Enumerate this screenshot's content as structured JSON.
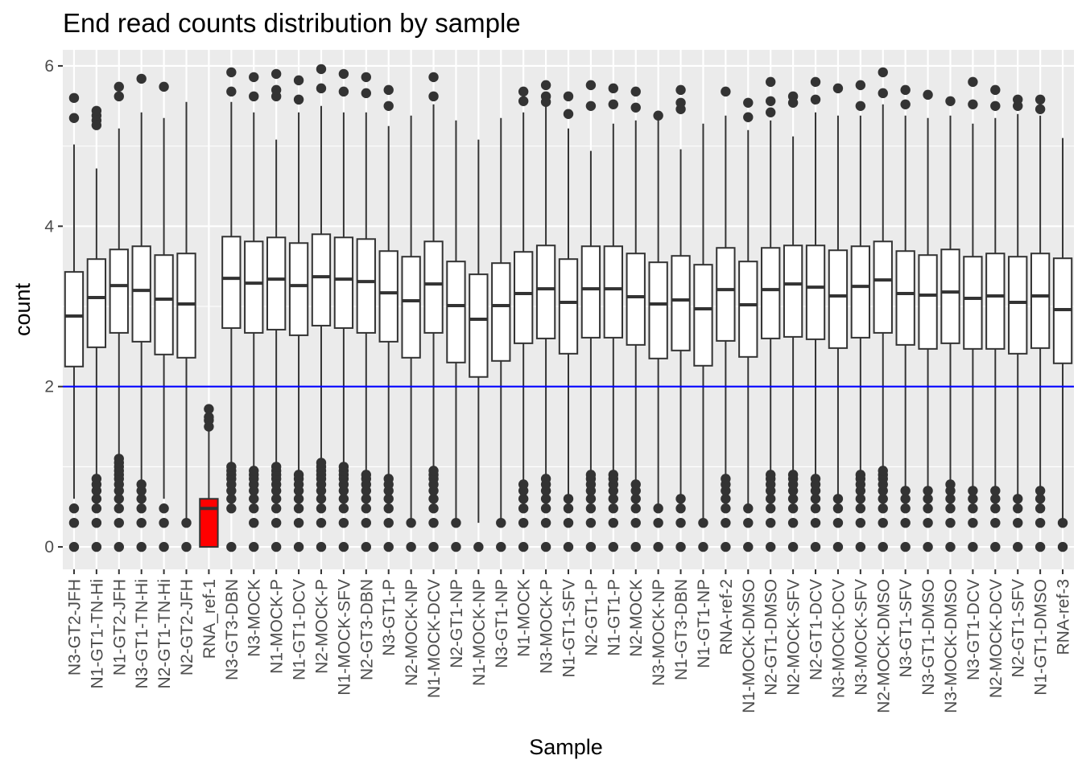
{
  "chart_data": {
    "type": "boxplot",
    "title": "End read counts distribution by sample",
    "xlabel": "Sample",
    "ylabel": "count",
    "ylim": [
      -0.28,
      6.2
    ],
    "y_ticks": [
      0,
      2,
      4,
      6
    ],
    "grid": true,
    "background": "#ebebeb",
    "reference_line": {
      "y": 2,
      "color": "#0000ff"
    },
    "highlight_color": "#ff0000",
    "categories": [
      "N3-GT2-JFH",
      "N1-GT1-TN-Hi",
      "N1-GT2-JFH",
      "N3-GT1-TN-Hi",
      "N2-GT1-TN-Hi",
      "N2-GT2-JFH",
      "RNA_ref-1",
      "N3-GT3-DBN",
      "N3-MOCK",
      "N1-MOCK-P",
      "N1-GT1-DCV",
      "N2-MOCK-P",
      "N1-MOCK-SFV",
      "N2-GT3-DBN",
      "N3-GT1-P",
      "N2-MOCK-NP",
      "N1-MOCK-DCV",
      "N2-GT1-NP",
      "N1-MOCK-NP",
      "N3-GT1-NP",
      "N1-MOCK",
      "N3-MOCK-P",
      "N1-GT1-SFV",
      "N2-GT1-P",
      "N1-GT1-P",
      "N2-MOCK",
      "N3-MOCK-NP",
      "N1-GT3-DBN",
      "N1-GT1-NP",
      "RNA-ref-2",
      "N1-MOCK-DMSO",
      "N2-GT1-DMSO",
      "N2-MOCK-SFV",
      "N2-GT1-DCV",
      "N3-MOCK-DCV",
      "N3-MOCK-SFV",
      "N2-MOCK-DMSO",
      "N3-GT1-SFV",
      "N3-GT1-DMSO",
      "N3-MOCK-DMSO",
      "N3-GT1-DCV",
      "N2-MOCK-DCV",
      "N2-GT1-SFV",
      "N1-GT1-DMSO",
      "RNA-ref-3"
    ],
    "boxes": [
      {
        "q1": 2.25,
        "median": 2.88,
        "q3": 3.43,
        "whisker_low": 0.6,
        "whisker_high": 5.02,
        "outliers_high": [
          5.35,
          5.6
        ],
        "outliers_low": [
          0,
          0.3,
          0.48
        ],
        "highlight": false
      },
      {
        "q1": 2.49,
        "median": 3.11,
        "q3": 3.59,
        "whisker_low": 0.88,
        "whisker_high": 4.72,
        "outliers_high": [
          5.26,
          5.32,
          5.38,
          5.44
        ],
        "outliers_low": [
          0,
          0.3,
          0.48,
          0.6,
          0.7,
          0.78,
          0.85
        ],
        "highlight": false
      },
      {
        "q1": 2.67,
        "median": 3.26,
        "q3": 3.71,
        "whisker_low": 1.13,
        "whisker_high": 5.22,
        "outliers_high": [
          5.62,
          5.74
        ],
        "outliers_low": [
          0,
          0.3,
          0.48,
          0.6,
          0.7,
          0.78,
          0.85,
          0.9,
          0.95,
          1.0,
          1.05,
          1.1
        ],
        "highlight": false
      },
      {
        "q1": 2.56,
        "median": 3.2,
        "q3": 3.75,
        "whisker_low": 0.82,
        "whisker_high": 5.42,
        "outliers_high": [
          5.84
        ],
        "outliers_low": [
          0,
          0.3,
          0.48,
          0.6,
          0.7,
          0.78
        ],
        "highlight": false
      },
      {
        "q1": 2.4,
        "median": 3.09,
        "q3": 3.64,
        "whisker_low": 0.6,
        "whisker_high": 5.35,
        "outliers_high": [
          5.74
        ],
        "outliers_low": [
          0,
          0.3,
          0.48
        ],
        "highlight": false
      },
      {
        "q1": 2.36,
        "median": 3.03,
        "q3": 3.66,
        "whisker_low": 0.35,
        "whisker_high": 5.55,
        "outliers_high": [],
        "outliers_low": [
          0,
          0.3
        ],
        "highlight": false
      },
      {
        "q1": 0,
        "median": 0.48,
        "q3": 0.6,
        "whisker_low": 0,
        "whisker_high": 1.45,
        "outliers_high": [
          1.5,
          1.58,
          1.62,
          1.72
        ],
        "outliers_low": [],
        "highlight": true
      },
      {
        "q1": 2.73,
        "median": 3.35,
        "q3": 3.87,
        "whisker_low": 1.05,
        "whisker_high": 5.55,
        "outliers_high": [
          5.68,
          5.92
        ],
        "outliers_low": [
          0,
          0.48,
          0.6,
          0.7,
          0.78,
          0.85,
          0.9,
          0.95,
          1.0
        ],
        "highlight": false
      },
      {
        "q1": 2.67,
        "median": 3.29,
        "q3": 3.81,
        "whisker_low": 0.98,
        "whisker_high": 5.42,
        "outliers_high": [
          5.62,
          5.86
        ],
        "outliers_low": [
          0,
          0.3,
          0.48,
          0.6,
          0.7,
          0.78,
          0.85,
          0.9,
          0.95
        ],
        "highlight": false
      },
      {
        "q1": 2.71,
        "median": 3.34,
        "q3": 3.86,
        "whisker_low": 1.02,
        "whisker_high": 5.08,
        "outliers_high": [
          5.62,
          5.7,
          5.9
        ],
        "outliers_low": [
          0,
          0.3,
          0.48,
          0.6,
          0.7,
          0.78,
          0.85,
          0.9,
          0.95,
          1.0
        ],
        "highlight": false
      },
      {
        "q1": 2.64,
        "median": 3.26,
        "q3": 3.79,
        "whisker_low": 0.95,
        "whisker_high": 5.42,
        "outliers_high": [
          5.58,
          5.82
        ],
        "outliers_low": [
          0,
          0.3,
          0.48,
          0.6,
          0.7,
          0.78,
          0.85,
          0.9
        ],
        "highlight": false
      },
      {
        "q1": 2.76,
        "median": 3.37,
        "q3": 3.9,
        "whisker_low": 1.08,
        "whisker_high": 5.5,
        "outliers_high": [
          5.72,
          5.96
        ],
        "outliers_low": [
          0,
          0.3,
          0.48,
          0.6,
          0.7,
          0.78,
          0.85,
          0.9,
          0.95,
          1.0,
          1.05
        ],
        "highlight": false
      },
      {
        "q1": 2.73,
        "median": 3.34,
        "q3": 3.86,
        "whisker_low": 1.02,
        "whisker_high": 5.42,
        "outliers_high": [
          5.68,
          5.9
        ],
        "outliers_low": [
          0,
          0.3,
          0.48,
          0.6,
          0.7,
          0.78,
          0.85,
          0.9,
          0.95,
          1.0
        ],
        "highlight": false
      },
      {
        "q1": 2.67,
        "median": 3.31,
        "q3": 3.84,
        "whisker_low": 0.95,
        "whisker_high": 5.42,
        "outliers_high": [
          5.66,
          5.86
        ],
        "outliers_low": [
          0,
          0.3,
          0.48,
          0.6,
          0.7,
          0.78,
          0.85,
          0.9
        ],
        "highlight": false
      },
      {
        "q1": 2.56,
        "median": 3.17,
        "q3": 3.69,
        "whisker_low": 0.9,
        "whisker_high": 5.25,
        "outliers_high": [
          5.5,
          5.7
        ],
        "outliers_low": [
          0,
          0.3,
          0.48,
          0.6,
          0.7,
          0.78,
          0.85
        ],
        "highlight": false
      },
      {
        "q1": 2.36,
        "median": 3.07,
        "q3": 3.62,
        "whisker_low": 0.35,
        "whisker_high": 5.38,
        "outliers_high": [],
        "outliers_low": [
          0,
          0.3
        ],
        "highlight": false
      },
      {
        "q1": 2.67,
        "median": 3.28,
        "q3": 3.81,
        "whisker_low": 0.98,
        "whisker_high": 5.52,
        "outliers_high": [
          5.62,
          5.86
        ],
        "outliers_low": [
          0,
          0.3,
          0.48,
          0.6,
          0.7,
          0.78,
          0.85,
          0.9,
          0.95
        ],
        "highlight": false
      },
      {
        "q1": 2.3,
        "median": 3.01,
        "q3": 3.56,
        "whisker_low": 0.35,
        "whisker_high": 5.32,
        "outliers_high": [],
        "outliers_low": [
          0,
          0.3
        ],
        "highlight": false
      },
      {
        "q1": 2.12,
        "median": 2.84,
        "q3": 3.4,
        "whisker_low": 0.3,
        "whisker_high": 5.08,
        "outliers_high": [],
        "outliers_low": [
          0
        ],
        "highlight": false
      },
      {
        "q1": 2.32,
        "median": 3.01,
        "q3": 3.54,
        "whisker_low": 0.35,
        "whisker_high": 5.35,
        "outliers_high": [],
        "outliers_low": [
          0,
          0.3
        ],
        "highlight": false
      },
      {
        "q1": 2.54,
        "median": 3.16,
        "q3": 3.68,
        "whisker_low": 0.82,
        "whisker_high": 5.42,
        "outliers_high": [
          5.56,
          5.68
        ],
        "outliers_low": [
          0,
          0.3,
          0.48,
          0.6,
          0.7,
          0.78
        ],
        "highlight": false
      },
      {
        "q1": 2.6,
        "median": 3.22,
        "q3": 3.76,
        "whisker_low": 0.88,
        "whisker_high": 5.52,
        "outliers_high": [
          5.55,
          5.62,
          5.76
        ],
        "outliers_low": [
          0,
          0.3,
          0.48,
          0.6,
          0.7,
          0.78,
          0.85
        ],
        "highlight": false
      },
      {
        "q1": 2.41,
        "median": 3.05,
        "q3": 3.59,
        "whisker_low": 0.65,
        "whisker_high": 5.22,
        "outliers_high": [
          5.4,
          5.62
        ],
        "outliers_low": [
          0,
          0.3,
          0.48,
          0.6
        ],
        "highlight": false
      },
      {
        "q1": 2.61,
        "median": 3.22,
        "q3": 3.75,
        "whisker_low": 0.92,
        "whisker_high": 4.94,
        "outliers_high": [
          5.5,
          5.76
        ],
        "outliers_low": [
          0,
          0.3,
          0.48,
          0.6,
          0.7,
          0.78,
          0.85,
          0.9
        ],
        "highlight": false
      },
      {
        "q1": 2.61,
        "median": 3.22,
        "q3": 3.75,
        "whisker_low": 0.92,
        "whisker_high": 5.28,
        "outliers_high": [
          5.52,
          5.72
        ],
        "outliers_low": [
          0,
          0.3,
          0.48,
          0.6,
          0.7,
          0.78,
          0.85,
          0.9
        ],
        "highlight": false
      },
      {
        "q1": 2.52,
        "median": 3.12,
        "q3": 3.66,
        "whisker_low": 0.82,
        "whisker_high": 5.32,
        "outliers_high": [
          5.48,
          5.68
        ],
        "outliers_low": [
          0,
          0.3,
          0.48,
          0.6,
          0.7,
          0.78
        ],
        "highlight": false
      },
      {
        "q1": 2.35,
        "median": 3.03,
        "q3": 3.55,
        "whisker_low": 0.5,
        "whisker_high": 5.36,
        "outliers_high": [
          5.38
        ],
        "outliers_low": [
          0,
          0.3,
          0.48
        ],
        "highlight": false
      },
      {
        "q1": 2.45,
        "median": 3.08,
        "q3": 3.63,
        "whisker_low": 0.65,
        "whisker_high": 4.96,
        "outliers_high": [
          5.46,
          5.54,
          5.7
        ],
        "outliers_low": [
          0,
          0.3,
          0.48,
          0.6
        ],
        "highlight": false
      },
      {
        "q1": 2.26,
        "median": 2.97,
        "q3": 3.52,
        "whisker_low": 0.32,
        "whisker_high": 5.28,
        "outliers_high": [],
        "outliers_low": [
          0,
          0.3
        ],
        "highlight": false
      },
      {
        "q1": 2.57,
        "median": 3.21,
        "q3": 3.73,
        "whisker_low": 0.88,
        "whisker_high": 5.38,
        "outliers_high": [
          5.68
        ],
        "outliers_low": [
          0,
          0.3,
          0.48,
          0.6,
          0.7,
          0.78,
          0.85
        ],
        "highlight": false
      },
      {
        "q1": 2.37,
        "median": 3.02,
        "q3": 3.56,
        "whisker_low": 0.5,
        "whisker_high": 5.2,
        "outliers_high": [
          5.36,
          5.54
        ],
        "outliers_low": [
          0,
          0.3,
          0.48
        ],
        "highlight": false
      },
      {
        "q1": 2.6,
        "median": 3.21,
        "q3": 3.73,
        "whisker_low": 0.92,
        "whisker_high": 5.32,
        "outliers_high": [
          5.42,
          5.56,
          5.8
        ],
        "outliers_low": [
          0,
          0.3,
          0.48,
          0.6,
          0.7,
          0.78,
          0.85,
          0.9
        ],
        "highlight": false
      },
      {
        "q1": 2.62,
        "median": 3.28,
        "q3": 3.76,
        "whisker_low": 0.92,
        "whisker_high": 5.12,
        "outliers_high": [
          5.54,
          5.62
        ],
        "outliers_low": [
          0,
          0.3,
          0.48,
          0.6,
          0.7,
          0.78,
          0.85,
          0.9
        ],
        "highlight": false
      },
      {
        "q1": 2.59,
        "median": 3.24,
        "q3": 3.76,
        "whisker_low": 0.88,
        "whisker_high": 5.42,
        "outliers_high": [
          5.58,
          5.8
        ],
        "outliers_low": [
          0,
          0.3,
          0.48,
          0.6,
          0.7,
          0.78,
          0.85
        ],
        "highlight": false
      },
      {
        "q1": 2.48,
        "median": 3.13,
        "q3": 3.7,
        "whisker_low": 0.65,
        "whisker_high": 5.38,
        "outliers_high": [
          5.72
        ],
        "outliers_low": [
          0,
          0.3,
          0.48,
          0.6
        ],
        "highlight": false
      },
      {
        "q1": 2.61,
        "median": 3.25,
        "q3": 3.75,
        "whisker_low": 0.95,
        "whisker_high": 5.38,
        "outliers_high": [
          5.5,
          5.76
        ],
        "outliers_low": [
          0,
          0.3,
          0.48,
          0.6,
          0.7,
          0.78,
          0.85,
          0.9
        ],
        "highlight": false
      },
      {
        "q1": 2.67,
        "median": 3.33,
        "q3": 3.81,
        "whisker_low": 0.98,
        "whisker_high": 5.52,
        "outliers_high": [
          5.66,
          5.92
        ],
        "outliers_low": [
          0,
          0.3,
          0.48,
          0.6,
          0.7,
          0.78,
          0.85,
          0.9,
          0.95
        ],
        "highlight": false
      },
      {
        "q1": 2.52,
        "median": 3.16,
        "q3": 3.69,
        "whisker_low": 0.72,
        "whisker_high": 5.38,
        "outliers_high": [
          5.52,
          5.7
        ],
        "outliers_low": [
          0,
          0.3,
          0.48,
          0.6,
          0.7
        ],
        "highlight": false
      },
      {
        "q1": 2.47,
        "median": 3.14,
        "q3": 3.64,
        "whisker_low": 0.72,
        "whisker_high": 5.35,
        "outliers_high": [
          5.64
        ],
        "outliers_low": [
          0,
          0.3,
          0.48,
          0.6,
          0.7
        ],
        "highlight": false
      },
      {
        "q1": 2.54,
        "median": 3.18,
        "q3": 3.71,
        "whisker_low": 0.78,
        "whisker_high": 5.38,
        "outliers_high": [
          5.56
        ],
        "outliers_low": [
          0,
          0.3,
          0.48,
          0.6,
          0.7,
          0.78
        ],
        "highlight": false
      },
      {
        "q1": 2.47,
        "median": 3.1,
        "q3": 3.62,
        "whisker_low": 0.72,
        "whisker_high": 5.28,
        "outliers_high": [
          5.52,
          5.8
        ],
        "outliers_low": [
          0,
          0.3,
          0.48,
          0.6,
          0.7
        ],
        "highlight": false
      },
      {
        "q1": 2.47,
        "median": 3.13,
        "q3": 3.66,
        "whisker_low": 0.72,
        "whisker_high": 5.35,
        "outliers_high": [
          5.5,
          5.7
        ],
        "outliers_low": [
          0,
          0.3,
          0.48,
          0.6,
          0.7
        ],
        "highlight": false
      },
      {
        "q1": 2.41,
        "median": 3.05,
        "q3": 3.62,
        "whisker_low": 0.62,
        "whisker_high": 5.4,
        "outliers_high": [
          5.5,
          5.58
        ],
        "outliers_low": [
          0,
          0.3,
          0.48,
          0.6
        ],
        "highlight": false
      },
      {
        "q1": 2.48,
        "median": 3.13,
        "q3": 3.66,
        "whisker_low": 0.72,
        "whisker_high": 5.38,
        "outliers_high": [
          5.46,
          5.58
        ],
        "outliers_low": [
          0,
          0.3,
          0.48,
          0.6,
          0.7
        ],
        "highlight": false
      },
      {
        "q1": 2.29,
        "median": 2.96,
        "q3": 3.6,
        "whisker_low": 0.35,
        "whisker_high": 5.1,
        "outliers_high": [],
        "outliers_low": [
          0,
          0.3
        ],
        "highlight": false
      }
    ]
  }
}
